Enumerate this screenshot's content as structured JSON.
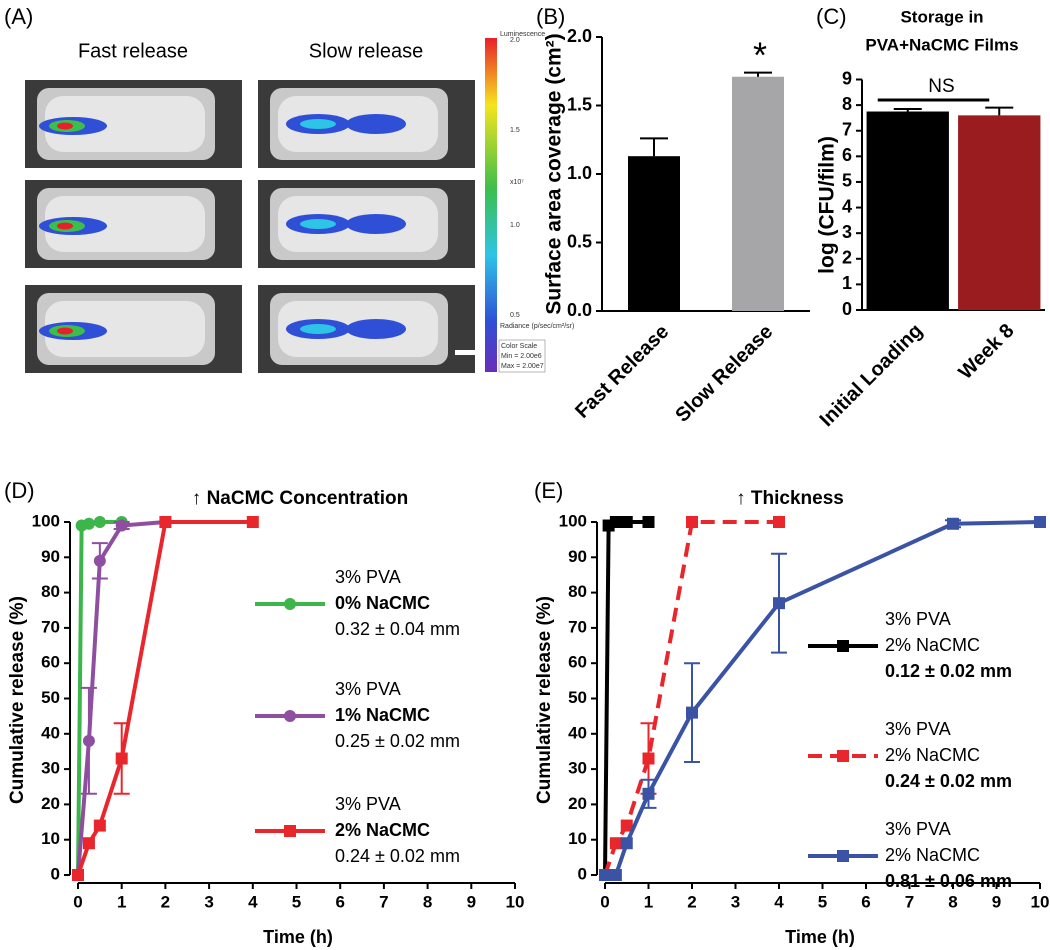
{
  "panel_labels": [
    "(A)",
    "(B)",
    "(C)",
    "(D)",
    "(E)"
  ],
  "image_panel": {
    "columns": [
      "Fast release",
      "Slow release"
    ],
    "colorbar_title": "Luminescence",
    "colorbar_ticks": [
      "2.0",
      "1.5",
      "1.0",
      "0.5"
    ],
    "colorbar_unit": "x10⁷",
    "colorbar_label": "Radiance (p/sec/cm²/sr)",
    "color_scale": [
      "Color Scale",
      "Min = 2.00e6",
      "Max = 2.00e7"
    ]
  },
  "chart_data": [
    {
      "type": "bar",
      "ylabel": "Surface area coverage (cm²)",
      "categories": [
        "Fast Release",
        "Slow Release"
      ],
      "values": [
        1.13,
        1.71
      ],
      "errors": [
        0.13,
        0.03
      ],
      "colors": [
        "#000000",
        "#a6a6a8"
      ],
      "annotation": "*",
      "ylim": [
        0,
        2
      ],
      "yticks": [
        {
          "value": 0,
          "label": "0.0"
        },
        0.5,
        {
          "value": 1,
          "label": "1.0"
        },
        1.5,
        {
          "value": 2,
          "label": "2.0"
        }
      ]
    },
    {
      "type": "bar",
      "title": [
        "Storage in",
        "PVA+NaCMC Films"
      ],
      "ylabel": "log (CFU/film)",
      "categories": [
        "Initial Loading",
        "Week 8"
      ],
      "values": [
        7.75,
        7.6
      ],
      "errors": [
        0.1,
        0.3
      ],
      "colors": [
        "#000000",
        "#9b1c1f"
      ],
      "annotation": "NS",
      "ylim": [
        0,
        9
      ],
      "yticks": [
        0,
        1,
        2,
        3,
        4,
        5,
        6,
        7,
        8,
        9
      ]
    },
    {
      "type": "line",
      "title": "↑ NaCMC Concentration",
      "xlabel": "Time (h)",
      "ylabel": "Cumulative release (%)",
      "xlim": [
        0,
        10
      ],
      "xticks": [
        0,
        1,
        2,
        3,
        4,
        5,
        6,
        7,
        8,
        9,
        10
      ],
      "ylim": [
        0,
        100
      ],
      "yticks": [
        0,
        10,
        20,
        30,
        40,
        50,
        60,
        70,
        80,
        90,
        100
      ],
      "series": [
        {
          "name": "0% NaCMC",
          "legend_above": "3% PVA",
          "legend_below": "0.32 ± 0.04 mm",
          "color": "#3cb54a",
          "marker": "circle",
          "x": [
            0,
            0.083,
            0.25,
            0.5,
            1
          ],
          "values": [
            0,
            99,
            99.5,
            100,
            100
          ]
        },
        {
          "name": "1% NaCMC",
          "legend_above": "3% PVA",
          "legend_below": "0.25 ± 0.02 mm",
          "color": "#8e4fa0",
          "marker": "circle",
          "x": [
            0,
            0.25,
            0.5,
            1,
            2
          ],
          "values": [
            0,
            38,
            89,
            99,
            100
          ],
          "errors": [
            0,
            15,
            5,
            1,
            0
          ]
        },
        {
          "name": "2% NaCMC",
          "legend_above": "3% PVA",
          "legend_below": "0.24 ± 0.02 mm",
          "color": "#e8262b",
          "marker": "square",
          "x": [
            0,
            0.25,
            0.5,
            1,
            2,
            4
          ],
          "values": [
            0,
            9,
            14,
            33,
            100,
            100
          ],
          "errors": [
            0,
            0,
            0,
            10,
            0,
            0
          ]
        }
      ]
    },
    {
      "type": "line",
      "title": "↑ Thickness",
      "xlabel": "Time (h)",
      "ylabel": "Cumulative release (%)",
      "xlim": [
        0,
        10
      ],
      "xticks": [
        0,
        1,
        2,
        3,
        4,
        5,
        6,
        7,
        8,
        9,
        10
      ],
      "ylim": [
        0,
        100
      ],
      "yticks": [
        0,
        10,
        20,
        30,
        40,
        50,
        60,
        70,
        80,
        90,
        100
      ],
      "series": [
        {
          "name": "2% NaCMC",
          "legend_above": "3% PVA",
          "legend_below": "0.12 ± 0.02 mm",
          "color": "#000000",
          "marker": "square",
          "x": [
            0,
            0.083,
            0.25,
            0.5,
            1
          ],
          "values": [
            0,
            99,
            100,
            100,
            100
          ]
        },
        {
          "name": "2% NaCMC",
          "legend_above": "3% PVA",
          "legend_below": "0.24 ± 0.02 mm",
          "color": "#e8262b",
          "marker": "square",
          "dashed": true,
          "x": [
            0,
            0.25,
            0.5,
            1,
            2,
            4
          ],
          "values": [
            0,
            9,
            14,
            33,
            100,
            100
          ],
          "errors": [
            0,
            0,
            0,
            10,
            0,
            0
          ]
        },
        {
          "name": "2% NaCMC",
          "legend_above": "3% PVA",
          "legend_below": "0.81 ± 0.06 mm",
          "color": "#3a53a4",
          "marker": "square",
          "x": [
            0,
            0.25,
            0.5,
            1,
            2,
            4,
            8,
            10
          ],
          "values": [
            0,
            0,
            9,
            23,
            46,
            77,
            99.5,
            100
          ],
          "errors": [
            0,
            0,
            0,
            4,
            14,
            14,
            1,
            0
          ]
        }
      ]
    }
  ]
}
